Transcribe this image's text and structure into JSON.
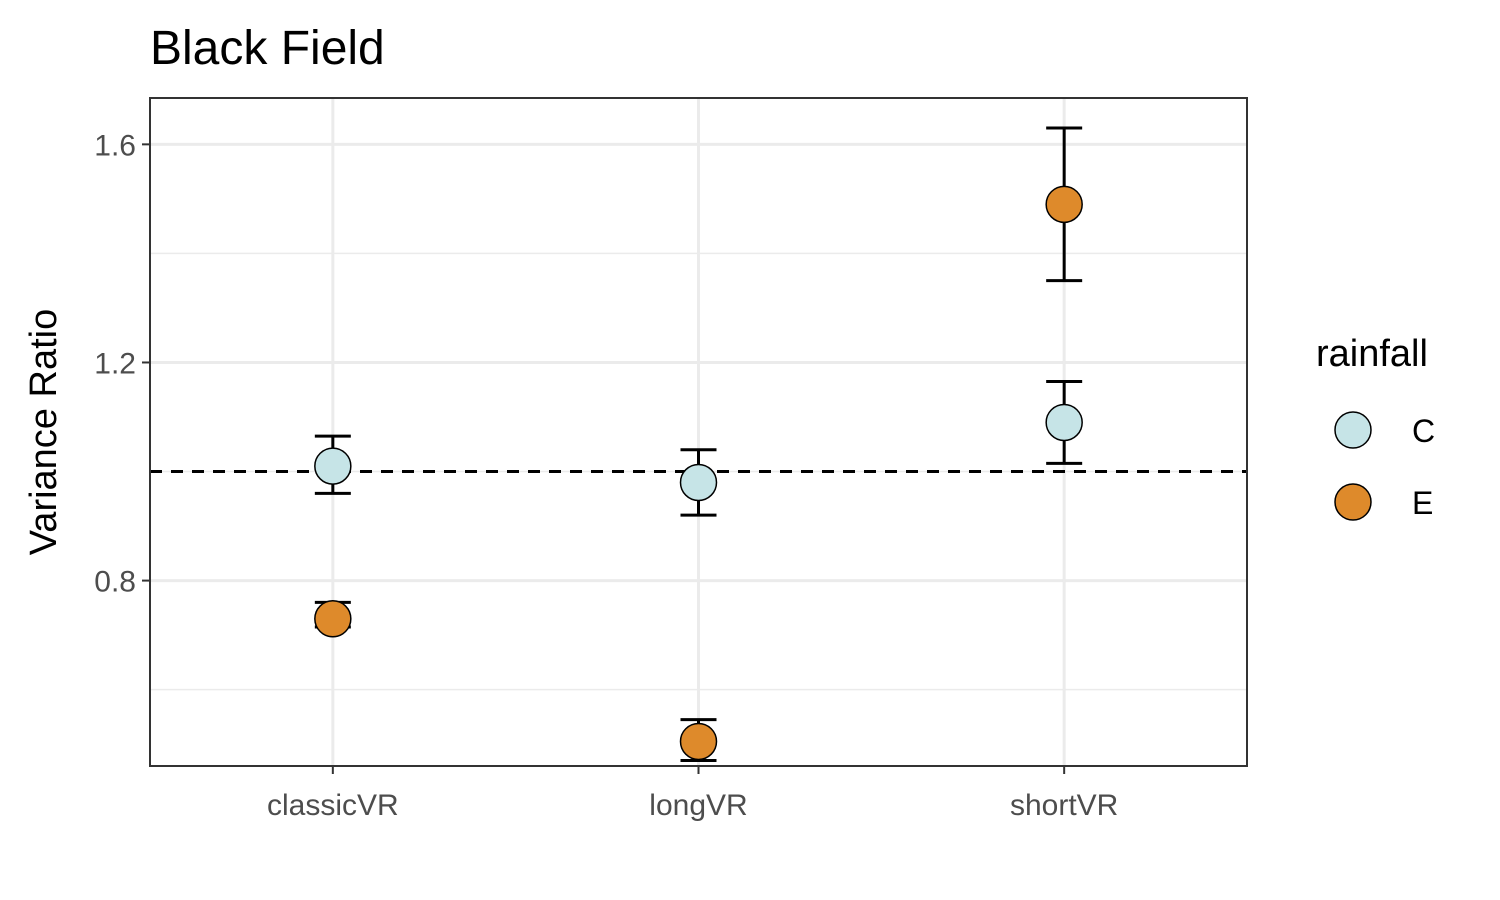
{
  "chart_data": {
    "type": "scatter",
    "title": "Black Field",
    "xlabel": "",
    "ylabel": "Variance Ratio",
    "categories": [
      "classicVR",
      "longVR",
      "shortVR"
    ],
    "ylim": [
      0.46,
      1.685
    ],
    "yticks": [
      0.8,
      1.2,
      1.6
    ],
    "yticks_labels": [
      "0.8",
      "1.2",
      "1.6"
    ],
    "reference_line": {
      "y": 1.0,
      "style": "dashed"
    },
    "grid": true,
    "legend": {
      "title": "rainfall",
      "position": "right",
      "entries": [
        {
          "label": "C",
          "color": "#c6e4e7"
        },
        {
          "label": "E",
          "color": "#de8a2b"
        }
      ]
    },
    "series": [
      {
        "name": "C",
        "color": "#c6e4e7",
        "values": [
          1.01,
          0.98,
          1.09
        ],
        "error_low": [
          0.96,
          0.92,
          1.015
        ],
        "error_high": [
          1.065,
          1.04,
          1.165
        ]
      },
      {
        "name": "E",
        "color": "#de8a2b",
        "values": [
          0.73,
          0.505,
          1.49
        ],
        "error_low": [
          0.715,
          0.47,
          1.35
        ],
        "error_high": [
          0.76,
          0.545,
          1.63
        ]
      }
    ]
  }
}
